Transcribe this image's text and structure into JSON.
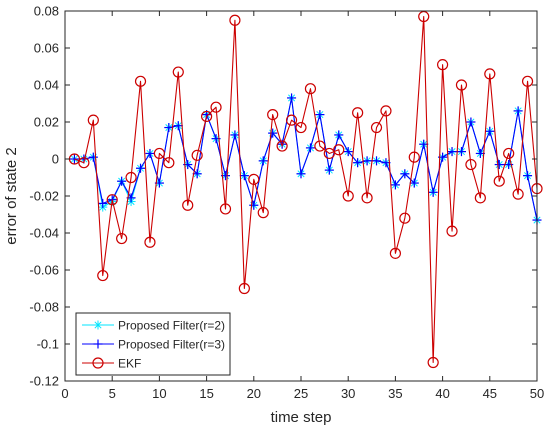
{
  "chart_data": {
    "type": "line",
    "title": "",
    "xlabel": "time step",
    "ylabel": "error of state 2",
    "xlim": [
      0,
      50
    ],
    "ylim": [
      -0.12,
      0.08
    ],
    "xticks": [
      0,
      5,
      10,
      15,
      20,
      25,
      30,
      35,
      40,
      45,
      50
    ],
    "yticks": [
      -0.12,
      -0.1,
      -0.08,
      -0.06,
      -0.04,
      -0.02,
      0,
      0.02,
      0.04,
      0.06,
      0.08
    ],
    "xtick_labels": [
      "0",
      "5",
      "10",
      "15",
      "20",
      "25",
      "30",
      "35",
      "40",
      "45",
      "50"
    ],
    "ytick_labels": [
      "-0.12",
      "-0.1",
      "-0.08",
      "-0.06",
      "-0.04",
      "-0.02",
      "0",
      "0.02",
      "0.04",
      "0.06",
      "0.08"
    ],
    "grid": false,
    "legend_position": "bottom-left",
    "x": [
      1,
      2,
      3,
      4,
      5,
      6,
      7,
      8,
      9,
      10,
      11,
      12,
      13,
      14,
      15,
      16,
      17,
      18,
      19,
      20,
      21,
      22,
      23,
      24,
      25,
      26,
      27,
      28,
      29,
      30,
      31,
      32,
      33,
      34,
      35,
      36,
      37,
      38,
      39,
      40,
      41,
      42,
      43,
      44,
      45,
      46,
      47,
      48,
      49,
      50
    ],
    "series": [
      {
        "name": "Proposed Filter(r=2)",
        "color": "#00e5ff",
        "marker": "asterisk",
        "values": [
          0.0,
          0.0,
          0.001,
          -0.026,
          -0.023,
          -0.012,
          -0.023,
          -0.005,
          0.003,
          -0.013,
          0.017,
          0.018,
          -0.003,
          -0.008,
          0.024,
          0.011,
          -0.009,
          0.013,
          -0.009,
          -0.025,
          -0.001,
          0.014,
          0.008,
          0.033,
          -0.008,
          0.006,
          0.024,
          -0.006,
          0.013,
          0.004,
          -0.002,
          -0.001,
          -0.001,
          -0.002,
          -0.014,
          -0.008,
          -0.013,
          0.008,
          -0.018,
          0.001,
          0.004,
          0.004,
          0.02,
          0.003,
          0.015,
          -0.003,
          -0.003,
          0.026,
          -0.009,
          -0.033
        ]
      },
      {
        "name": "Proposed Filter(r=3)",
        "color": "#0000ff",
        "marker": "plus",
        "values": [
          0.0,
          0.0,
          0.001,
          -0.024,
          -0.022,
          -0.012,
          -0.021,
          -0.005,
          0.003,
          -0.013,
          0.017,
          0.018,
          -0.003,
          -0.008,
          0.024,
          0.011,
          -0.009,
          0.013,
          -0.009,
          -0.025,
          -0.001,
          0.014,
          0.008,
          0.033,
          -0.008,
          0.006,
          0.024,
          -0.006,
          0.013,
          0.004,
          -0.002,
          -0.001,
          -0.001,
          -0.002,
          -0.014,
          -0.008,
          -0.013,
          0.008,
          -0.018,
          0.001,
          0.004,
          0.004,
          0.02,
          0.003,
          0.015,
          -0.003,
          -0.003,
          0.026,
          -0.009,
          -0.033
        ]
      },
      {
        "name": "EKF",
        "color": "#cc0000",
        "marker": "circle",
        "values": [
          0.0,
          -0.002,
          0.021,
          -0.063,
          -0.022,
          -0.043,
          -0.01,
          0.042,
          -0.045,
          0.003,
          -0.002,
          0.047,
          -0.025,
          0.002,
          0.023,
          0.028,
          -0.027,
          0.075,
          -0.07,
          -0.011,
          -0.029,
          0.024,
          0.007,
          0.021,
          0.017,
          0.038,
          0.007,
          0.003,
          0.005,
          -0.02,
          0.025,
          -0.021,
          0.017,
          0.026,
          -0.051,
          -0.032,
          0.001,
          0.077,
          -0.11,
          0.051,
          -0.039,
          0.04,
          -0.003,
          -0.021,
          0.046,
          -0.012,
          0.003,
          -0.019,
          0.042,
          -0.016
        ]
      }
    ]
  }
}
